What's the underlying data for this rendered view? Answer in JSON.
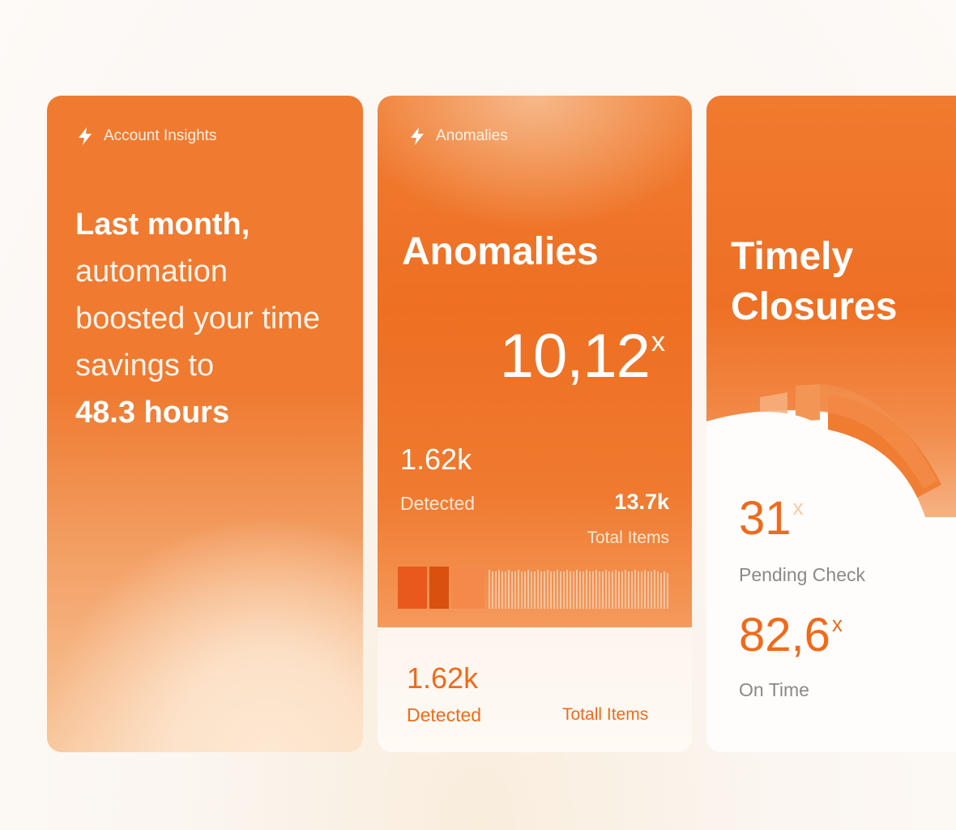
{
  "colors": {
    "accent": "#f07020",
    "accent_dark": "#e0571a",
    "background": "#fbf6f1"
  },
  "insights_card": {
    "tag_icon": "bolt-icon",
    "tag_label": "Account Insights",
    "line1": "Last month,",
    "line2": "automation",
    "line3": "boosted your time",
    "line4": "savings to",
    "highlight": "48.3 hours"
  },
  "anomalies_card": {
    "tag_icon": "bolt-icon",
    "tag_label": "Anomalies",
    "title": "Anomalies",
    "big_value": "10,12",
    "big_value_sup": "x",
    "detected_value": "1.62k",
    "detected_label": "Detected",
    "total_value": "13.7k",
    "total_label": "Total Items",
    "bottom_detected_value": "1.62k",
    "bottom_detected_label": "Detected",
    "bottom_total_label": "Totall Items"
  },
  "closures_card": {
    "title_line1": "Timely",
    "title_line2": "Closures",
    "pending_value": "31",
    "pending_sup": "x",
    "pending_label": "Pending Check",
    "ontime_value": "82,6",
    "ontime_sup": "x",
    "ontime_label": "On Time"
  }
}
